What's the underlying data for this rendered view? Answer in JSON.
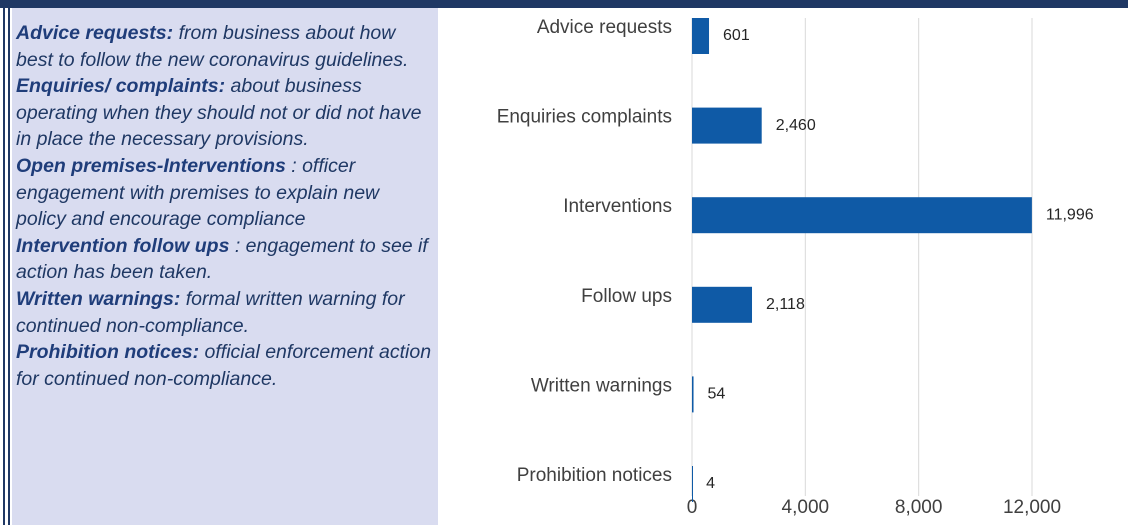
{
  "definitions": [
    {
      "term": "Advice requests:",
      "text": "from business about how best to follow the new coronavirus guidelines."
    },
    {
      "term": "Enquiries/ complaints:",
      "text": "about business operating when they should not or did not have in place the necessary provisions."
    },
    {
      "term": "Open premises-Interventions",
      "text": ": officer engagement with premises to explain new policy and encourage compliance"
    },
    {
      "term": "Intervention follow ups",
      "text": ": engagement to see if action has been taken."
    },
    {
      "term": "Written warnings:",
      "text": "formal written warning for continued non-compliance."
    },
    {
      "term": "Prohibition notices:",
      "text": "official enforcement action for continued non-compliance."
    }
  ],
  "chart_data": {
    "type": "hbar",
    "categories": [
      "Advice requests",
      "Enquiries complaints",
      "Interventions",
      "Follow ups",
      "Written warnings",
      "Prohibition notices"
    ],
    "values": [
      601,
      2460,
      11996,
      2118,
      54,
      4
    ],
    "value_labels": [
      "601",
      "2,460",
      "11,996",
      "2,118",
      "54",
      "4"
    ],
    "color": "#0f5aa6",
    "xlim": [
      0,
      12000
    ],
    "xticks": [
      0,
      {
        "value": 4000,
        "label": "4,000"
      },
      {
        "value": 8000,
        "label": "8,000"
      },
      {
        "value": 12000,
        "label": "12,000"
      }
    ],
    "grid": true
  }
}
